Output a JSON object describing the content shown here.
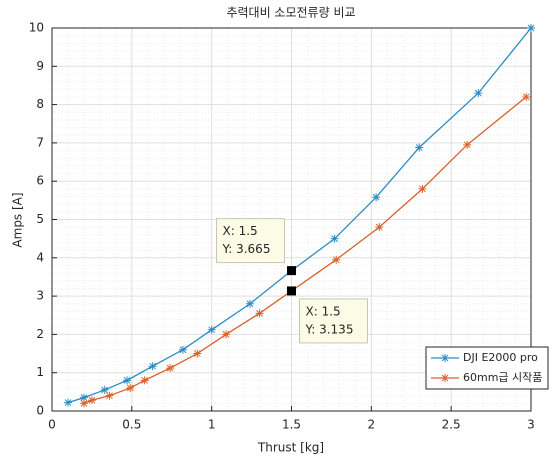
{
  "chart_data": {
    "type": "line",
    "title": "추력대비 소모전류량 비교",
    "xlabel": "Thrust [kg]",
    "ylabel": "Amps [A]",
    "xlim": [
      0,
      3
    ],
    "ylim": [
      0,
      10
    ],
    "xticks": [
      0,
      0.5,
      1,
      1.5,
      2,
      2.5,
      3
    ],
    "yticks": [
      0,
      1,
      2,
      3,
      4,
      5,
      6,
      7,
      8,
      9,
      10
    ],
    "grid": true,
    "minor_grid": true,
    "legend": "southeast",
    "series": [
      {
        "name": "DJI E2000 pro",
        "color": "#2b8cc4",
        "x": [
          0.1,
          0.2,
          0.33,
          0.47,
          0.63,
          0.82,
          1.0,
          1.24,
          1.5,
          1.77,
          2.03,
          2.3,
          2.67,
          3.0
        ],
        "values": [
          0.22,
          0.35,
          0.55,
          0.8,
          1.17,
          1.6,
          2.12,
          2.8,
          3.665,
          4.5,
          5.58,
          6.88,
          8.3,
          10
        ]
      },
      {
        "name": "60mm급 시작품",
        "color": "#d9622b",
        "x": [
          0.2,
          0.25,
          0.36,
          0.49,
          0.58,
          0.74,
          0.91,
          1.09,
          1.3,
          1.5,
          1.78,
          2.05,
          2.32,
          2.6,
          2.97
        ],
        "values": [
          0.2,
          0.28,
          0.4,
          0.6,
          0.8,
          1.12,
          1.5,
          2.0,
          2.55,
          3.135,
          3.95,
          4.8,
          5.8,
          6.95,
          8.2
        ]
      }
    ],
    "annotations": [
      {
        "x": 1.5,
        "y": 3.665,
        "label_x": "X: 1.5",
        "label_y": "Y: 3.665"
      },
      {
        "x": 1.5,
        "y": 3.135,
        "label_x": "X: 1.5",
        "label_y": "Y: 3.135"
      }
    ]
  }
}
